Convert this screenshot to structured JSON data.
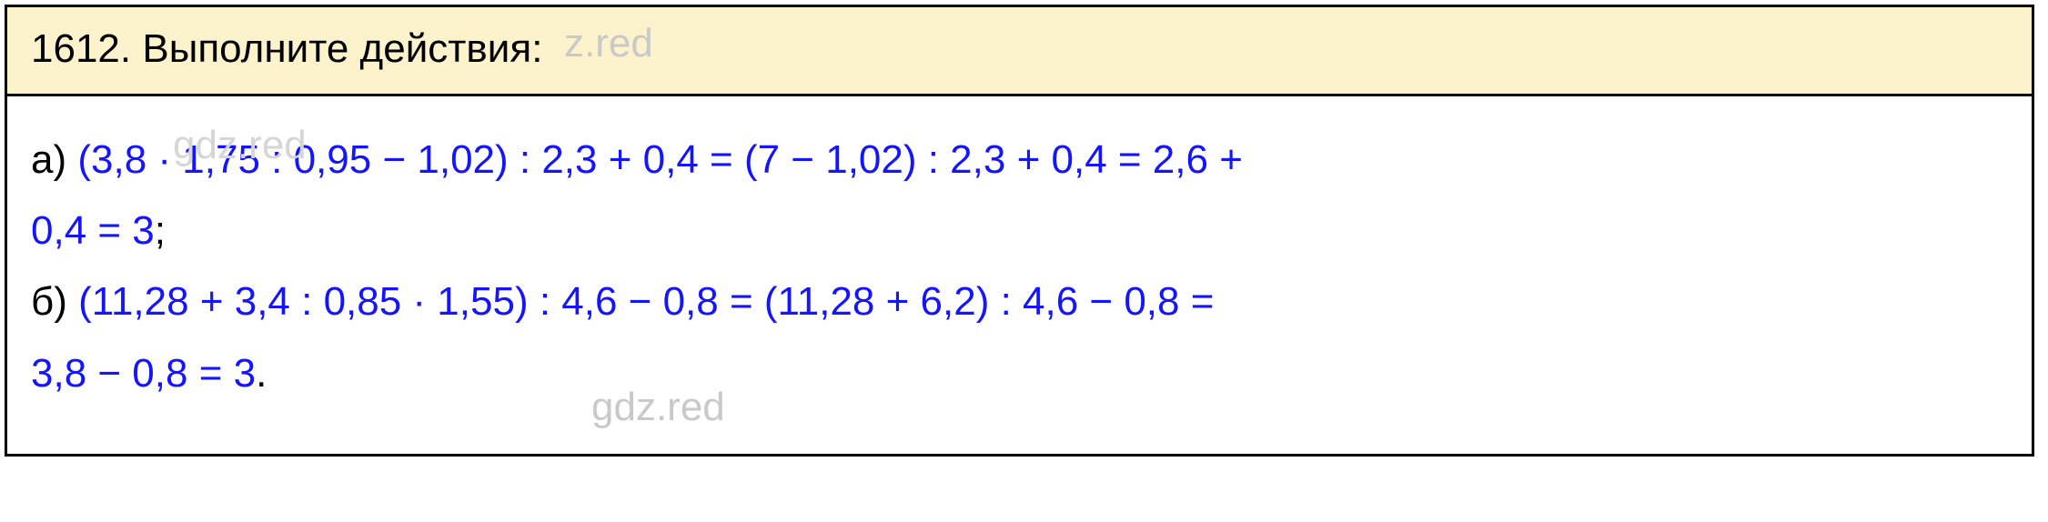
{
  "watermarks": {
    "top": "z.red",
    "left": "gdz.red",
    "center": "gdz.red",
    "color": "#c9c9c9",
    "fontsize": 44
  },
  "question": {
    "number": "1612.",
    "prompt": "Выполните действия:",
    "header_bg": "#fcf2cc",
    "text_color": "#000000",
    "fontsize": 44
  },
  "solutions": {
    "math_color": "#1414ff",
    "label_color": "#000000",
    "fontsize": 44,
    "items": [
      {
        "label": "а)",
        "line1": "(3,8 · 1,75 : 0,95 − 1,02) : 2,3 + 0,4 = (7 − 1,02) : 2,3 + 0,4 = 2,6 +",
        "line2": "0,4 = 3",
        "terminator": ";"
      },
      {
        "label": "б)",
        "line1": "(11,28 + 3,4 : 0,85 · 1,55) : 4,6 − 0,8 = (11,28 + 6,2) : 4,6 − 0,8 =",
        "line2": "3,8 − 0,8 = 3",
        "terminator": "."
      }
    ]
  },
  "box": {
    "border_color": "#000000",
    "border_width": 3,
    "body_bg": "#ffffff"
  }
}
